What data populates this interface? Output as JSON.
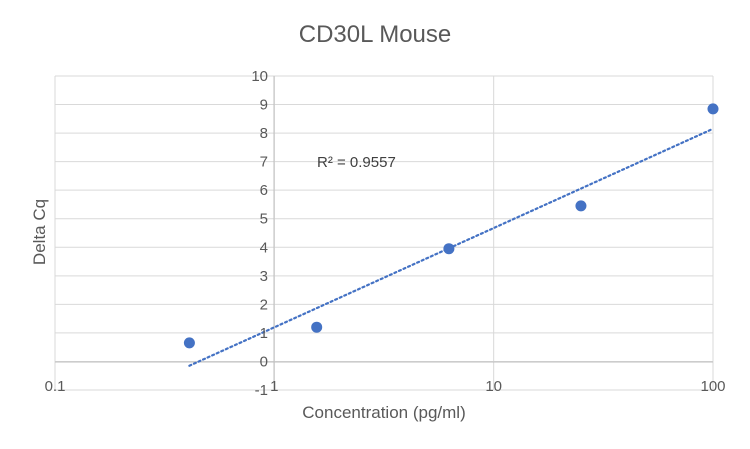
{
  "chart_data": {
    "type": "scatter",
    "title": "CD30L Mouse",
    "xlabel": "Concentration (pg/ml)",
    "ylabel": "Delta Cq",
    "x_scale": "log",
    "xlim": [
      0.1,
      100
    ],
    "ylim": [
      -1,
      10
    ],
    "x_ticks": [
      0.1,
      1,
      10,
      100
    ],
    "x_tick_labels": [
      "0.1",
      "1",
      "10",
      "100"
    ],
    "y_ticks": [
      -1,
      0,
      1,
      2,
      3,
      4,
      5,
      6,
      7,
      8,
      9,
      10
    ],
    "y_tick_labels": [
      "-1",
      "0",
      "1",
      "2",
      "3",
      "4",
      "5",
      "6",
      "7",
      "8",
      "9",
      "10"
    ],
    "grid": true,
    "series": [
      {
        "name": "Delta Cq",
        "color": "#4472C4",
        "points": [
          {
            "x": 0.41,
            "y": 0.65
          },
          {
            "x": 1.56,
            "y": 1.2
          },
          {
            "x": 6.25,
            "y": 3.95
          },
          {
            "x": 25,
            "y": 5.45
          },
          {
            "x": 100,
            "y": 8.85
          }
        ]
      }
    ],
    "trendline": {
      "type": "logarithmic",
      "style": "dotted",
      "color": "#4472C4",
      "x_start": 0.41,
      "x_end": 100,
      "y_start": -0.15,
      "y_end": 8.15
    },
    "annotations": [
      {
        "text": "R² = 0.9557",
        "anchor_x": 1.2,
        "anchor_y": 7
      }
    ]
  }
}
